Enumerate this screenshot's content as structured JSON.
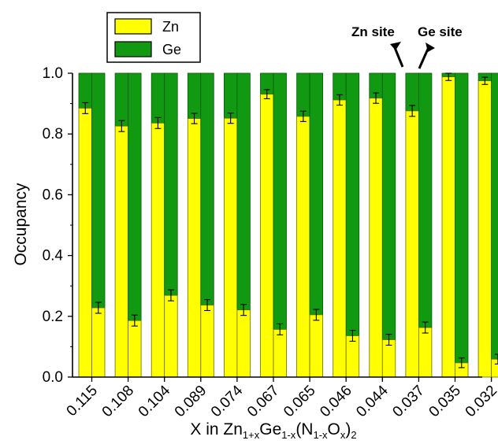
{
  "chart_data": {
    "type": "bar",
    "stacked": true,
    "grouped": true,
    "categories": [
      "0.115",
      "0.108",
      "0.104",
      "0.089",
      "0.074",
      "0.067",
      "0.065",
      "0.046",
      "0.044",
      "0.037",
      "0.035",
      "0.032"
    ],
    "xlabel": {
      "prefix": "X in Zn",
      "sub1": "1+x",
      "mid1": "Ge",
      "sub2": "1-x",
      "mid2": "(N",
      "sub3": "1-x",
      "mid3": "O",
      "sub4": "x",
      "mid4": ")",
      "sub5": "2"
    },
    "ylabel": "Occupancy",
    "ylim": [
      0.0,
      1.0
    ],
    "yticks": [
      "0.0",
      "0.2",
      "0.4",
      "0.6",
      "0.8",
      "1.0"
    ],
    "sites": [
      {
        "name": "Zn site",
        "zn_values": [
          0.885,
          0.826,
          0.836,
          0.851,
          0.852,
          0.931,
          0.858,
          0.912,
          0.918,
          0.876,
          0.988,
          0.975
        ],
        "errors": [
          0.018,
          0.018,
          0.018,
          0.017,
          0.017,
          0.015,
          0.017,
          0.017,
          0.017,
          0.018,
          0.012,
          0.012
        ]
      },
      {
        "name": "Ge site",
        "zn_values": [
          0.228,
          0.186,
          0.269,
          0.237,
          0.221,
          0.157,
          0.205,
          0.136,
          0.123,
          0.163,
          0.047,
          0.059
        ],
        "errors": [
          0.018,
          0.018,
          0.018,
          0.018,
          0.018,
          0.018,
          0.018,
          0.018,
          0.018,
          0.018,
          0.016,
          0.016
        ]
      }
    ],
    "series": [
      {
        "name": "Zn",
        "color": "#ffff00"
      },
      {
        "name": "Ge",
        "color": "#119911"
      }
    ],
    "legend_position": "top-left",
    "grid": false,
    "annotations": [
      "Zn site",
      "Ge site"
    ]
  }
}
